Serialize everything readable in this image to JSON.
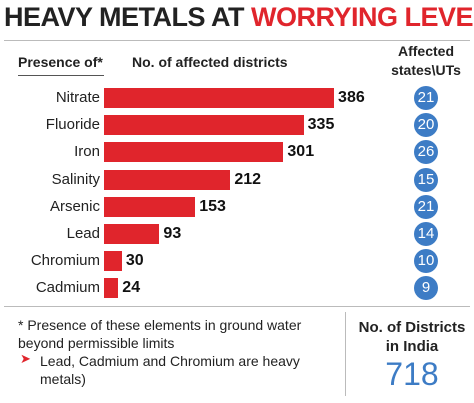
{
  "chart_data": {
    "type": "bar",
    "title": "HEAVY METALS AT",
    "title_highlight": "WORRYING LEVELS",
    "category_header": "Presence of*",
    "value_header": "No. of affected districts",
    "states_header": "Affected states\\UTs",
    "categories": [
      "Nitrate",
      "Fluoride",
      "Iron",
      "Salinity",
      "Arsenic",
      "Lead",
      "Chromium",
      "Cadmium"
    ],
    "values": [
      386,
      335,
      301,
      212,
      153,
      93,
      30,
      24
    ],
    "color": "#e0252c",
    "states": [
      21,
      20,
      26,
      15,
      21,
      14,
      10,
      9
    ],
    "states_color": "#3d7cc5",
    "footnote": "* Presence of these elements in ground water beyond permissible limits",
    "note": "Lead, Cadmium and Chromium are heavy metals)",
    "total_label": "No. of Districts in India",
    "total": 718
  }
}
